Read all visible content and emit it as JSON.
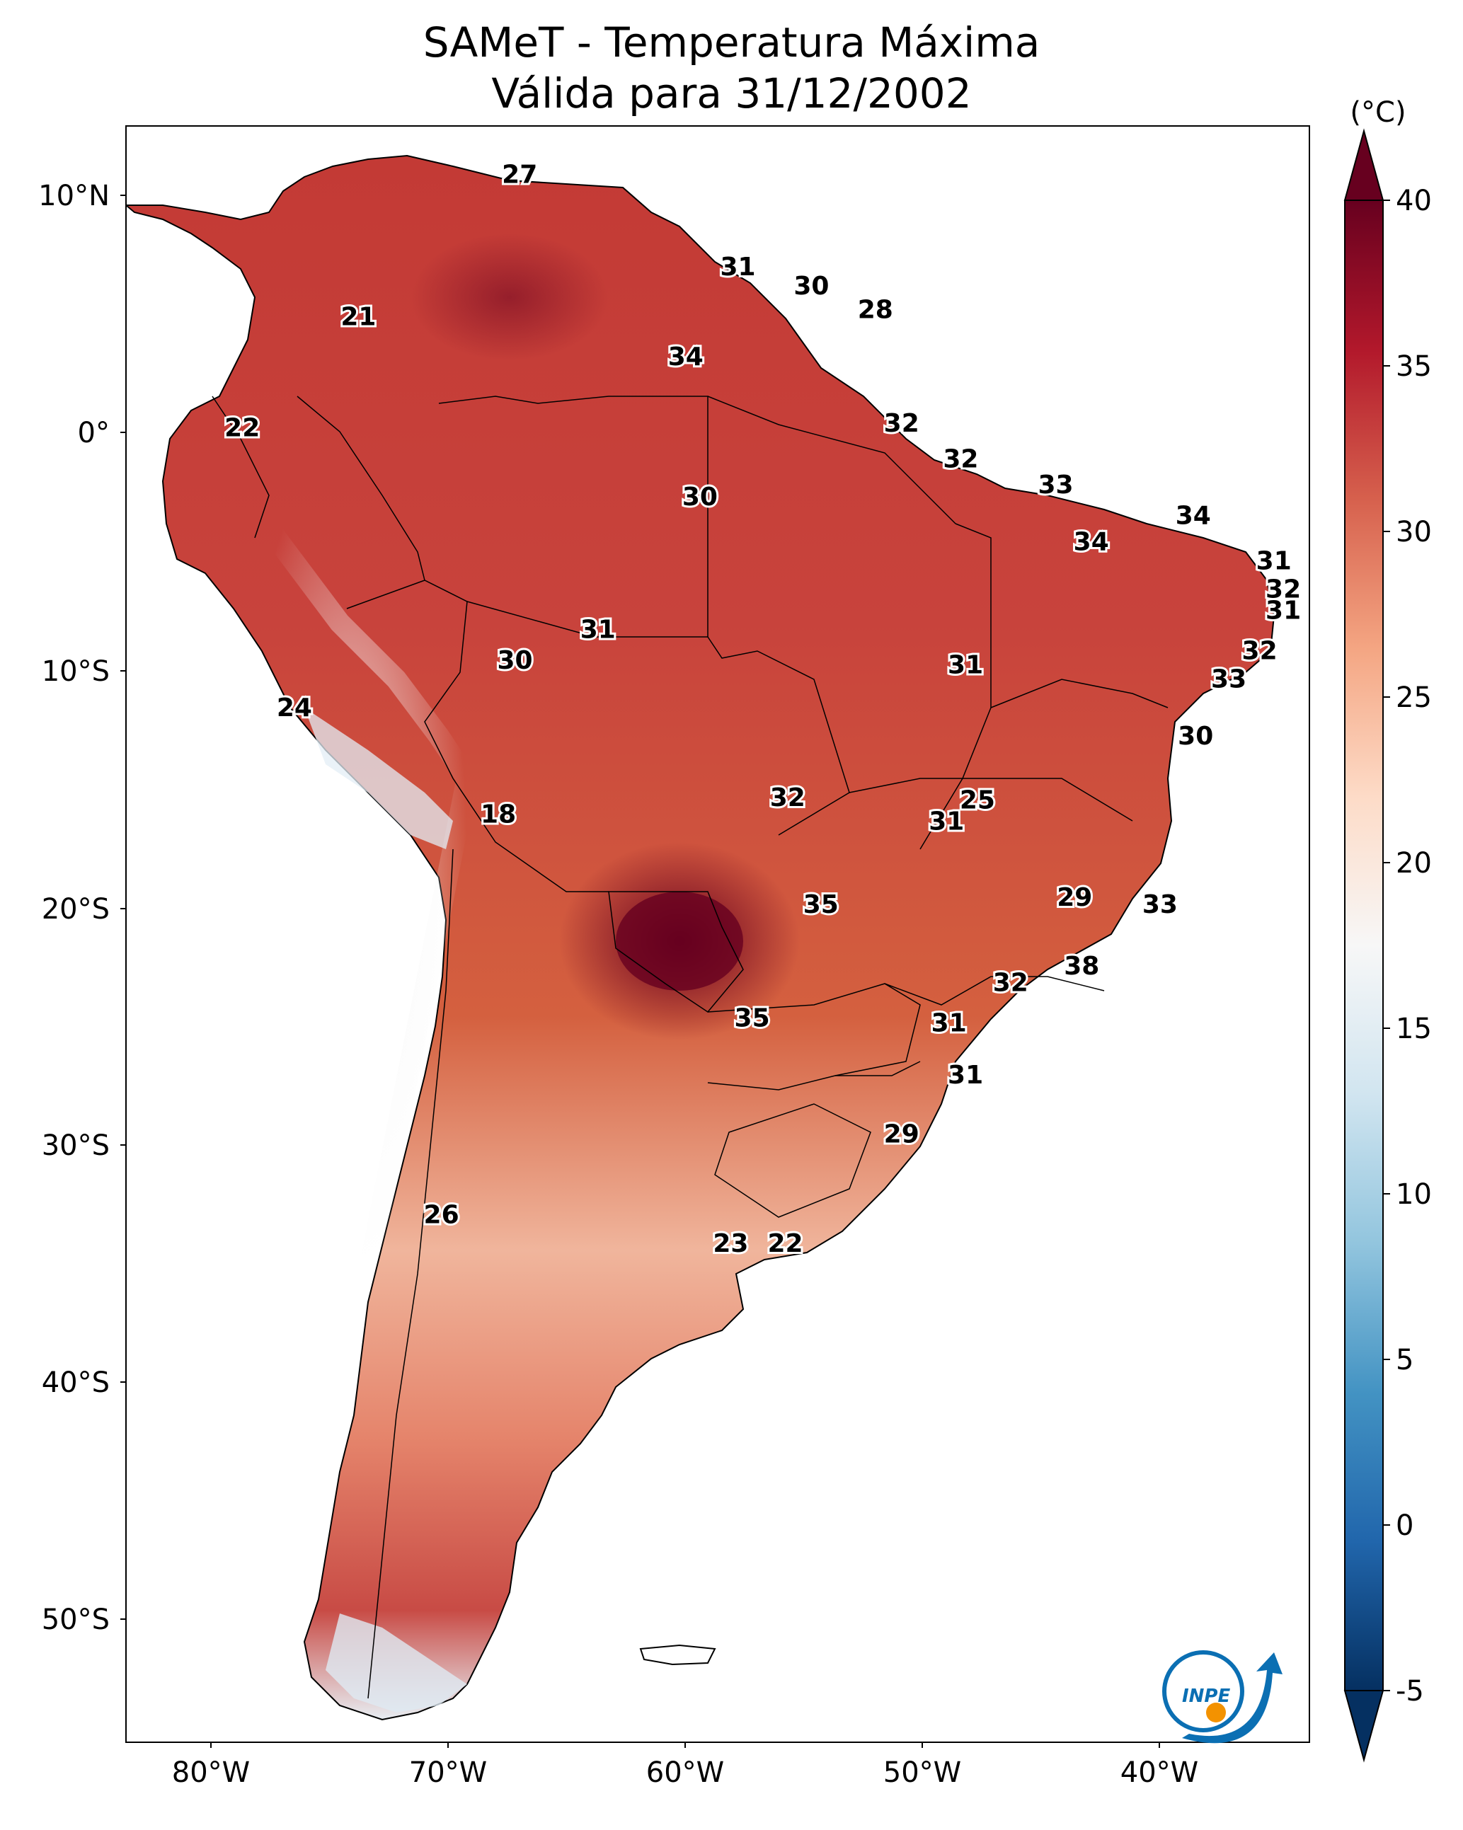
{
  "title": "SAMeT - Temperatura Máxima",
  "subtitle": "Válida para 31/12/2002",
  "colorbar": {
    "unit": "(°C)",
    "ticks": [
      "40",
      "35",
      "30",
      "25",
      "20",
      "15",
      "10",
      "5",
      "0",
      "-5"
    ],
    "range": [
      -5,
      40
    ],
    "colors": [
      "#053061",
      "#2166ac",
      "#4393c3",
      "#92c5de",
      "#d1e5f0",
      "#f7f7f7",
      "#fddbc7",
      "#f4a582",
      "#d6604d",
      "#b2182b",
      "#67001f"
    ]
  },
  "axes": {
    "lat_ticks": [
      "10°N",
      "0°",
      "10°S",
      "20°S",
      "30°S",
      "40°S",
      "50°S"
    ],
    "lon_ticks": [
      "80°W",
      "70°W",
      "60°W",
      "50°W",
      "40°W"
    ]
  },
  "labels": [
    {
      "text": "27",
      "lon": -67.0,
      "lat": 10.5
    },
    {
      "text": "31",
      "lon": -57.8,
      "lat": 6.6
    },
    {
      "text": "30",
      "lon": -54.7,
      "lat": 5.8
    },
    {
      "text": "28",
      "lon": -52.0,
      "lat": 4.8
    },
    {
      "text": "21",
      "lon": -73.8,
      "lat": 4.5
    },
    {
      "text": "34",
      "lon": -60.0,
      "lat": 2.8
    },
    {
      "text": "22",
      "lon": -78.7,
      "lat": -0.2
    },
    {
      "text": "32",
      "lon": -50.9,
      "lat": 0.0
    },
    {
      "text": "32",
      "lon": -48.4,
      "lat": -1.5
    },
    {
      "text": "33",
      "lon": -44.4,
      "lat": -2.6
    },
    {
      "text": "30",
      "lon": -59.4,
      "lat": -3.1
    },
    {
      "text": "34",
      "lon": -38.6,
      "lat": -3.9
    },
    {
      "text": "34",
      "lon": -42.9,
      "lat": -5.0
    },
    {
      "text": "31",
      "lon": -35.2,
      "lat": -5.8
    },
    {
      "text": "32",
      "lon": -34.8,
      "lat": -7.0
    },
    {
      "text": "31",
      "lon": -34.8,
      "lat": -7.9
    },
    {
      "text": "31",
      "lon": -63.7,
      "lat": -8.7
    },
    {
      "text": "32",
      "lon": -35.8,
      "lat": -9.6
    },
    {
      "text": "30",
      "lon": -67.2,
      "lat": -10.0
    },
    {
      "text": "31",
      "lon": -48.2,
      "lat": -10.2
    },
    {
      "text": "33",
      "lon": -37.1,
      "lat": -10.8
    },
    {
      "text": "24",
      "lon": -76.5,
      "lat": -12.0
    },
    {
      "text": "30",
      "lon": -38.5,
      "lat": -13.2
    },
    {
      "text": "32",
      "lon": -55.7,
      "lat": -15.8
    },
    {
      "text": "25",
      "lon": -47.7,
      "lat": -15.9
    },
    {
      "text": "18",
      "lon": -67.9,
      "lat": -16.5
    },
    {
      "text": "31",
      "lon": -49.0,
      "lat": -16.8
    },
    {
      "text": "29",
      "lon": -43.6,
      "lat": -20.0
    },
    {
      "text": "33",
      "lon": -40.0,
      "lat": -20.3
    },
    {
      "text": "35",
      "lon": -54.3,
      "lat": -20.3
    },
    {
      "text": "38",
      "lon": -43.3,
      "lat": -22.9
    },
    {
      "text": "32",
      "lon": -46.3,
      "lat": -23.6
    },
    {
      "text": "35",
      "lon": -57.2,
      "lat": -25.1
    },
    {
      "text": "31",
      "lon": -48.9,
      "lat": -25.3
    },
    {
      "text": "31",
      "lon": -48.2,
      "lat": -27.5
    },
    {
      "text": "29",
      "lon": -50.9,
      "lat": -30.0
    },
    {
      "text": "26",
      "lon": -70.3,
      "lat": -33.4
    },
    {
      "text": "23",
      "lon": -58.1,
      "lat": -34.6
    },
    {
      "text": "22",
      "lon": -55.8,
      "lat": -34.6
    }
  ],
  "logo": {
    "text": "INPE",
    "colors": [
      "#0b6fb3",
      "#f39200"
    ]
  }
}
